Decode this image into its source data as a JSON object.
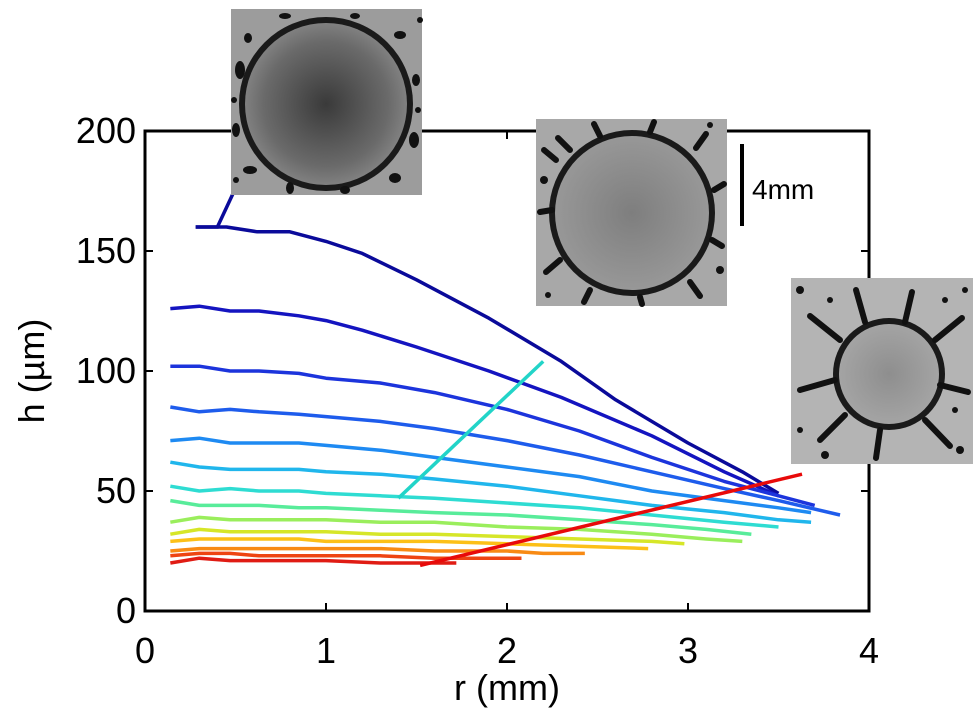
{
  "chart_data": {
    "type": "line",
    "xlabel": "r (mm)",
    "ylabel": "h (µm)",
    "xlim": [
      0,
      4
    ],
    "ylim": [
      0,
      200
    ],
    "xticks": [
      0,
      1,
      2,
      3,
      4
    ],
    "yticks": [
      0,
      50,
      100,
      150,
      200
    ],
    "grid": false,
    "series": [
      {
        "color": "#0a0a9a",
        "points": [
          [
            0.28,
            160
          ],
          [
            0.45,
            160
          ],
          [
            0.62,
            158
          ],
          [
            0.8,
            158
          ],
          [
            1.0,
            154
          ],
          [
            1.2,
            149
          ],
          [
            1.5,
            138
          ],
          [
            1.9,
            122
          ],
          [
            2.3,
            104
          ],
          [
            2.6,
            88
          ],
          [
            3.0,
            70
          ],
          [
            3.3,
            58
          ],
          [
            3.5,
            49
          ]
        ]
      },
      {
        "color": "#1414c0",
        "points": [
          [
            0.14,
            126
          ],
          [
            0.3,
            127
          ],
          [
            0.47,
            125
          ],
          [
            0.63,
            125
          ],
          [
            0.85,
            123
          ],
          [
            1.0,
            121
          ],
          [
            1.2,
            117
          ],
          [
            1.5,
            110
          ],
          [
            1.9,
            100
          ],
          [
            2.3,
            89
          ],
          [
            2.8,
            73
          ],
          [
            3.2,
            58
          ],
          [
            3.5,
            48
          ]
        ]
      },
      {
        "color": "#1c34dc",
        "points": [
          [
            0.14,
            102
          ],
          [
            0.3,
            102
          ],
          [
            0.47,
            100
          ],
          [
            0.63,
            100
          ],
          [
            0.85,
            99
          ],
          [
            1.0,
            97
          ],
          [
            1.3,
            95
          ],
          [
            1.6,
            91
          ],
          [
            2.0,
            84
          ],
          [
            2.4,
            75
          ],
          [
            2.8,
            64
          ],
          [
            3.2,
            54
          ],
          [
            3.5,
            48
          ],
          [
            3.7,
            44
          ]
        ]
      },
      {
        "color": "#1e5cec",
        "points": [
          [
            0.14,
            85
          ],
          [
            0.3,
            83
          ],
          [
            0.47,
            84
          ],
          [
            0.63,
            83
          ],
          [
            0.85,
            82
          ],
          [
            1.0,
            81
          ],
          [
            1.3,
            79
          ],
          [
            1.6,
            76
          ],
          [
            2.0,
            71
          ],
          [
            2.4,
            65
          ],
          [
            2.8,
            58
          ],
          [
            3.2,
            51
          ],
          [
            3.5,
            46
          ],
          [
            3.84,
            40
          ]
        ]
      },
      {
        "color": "#1e8af2",
        "points": [
          [
            0.14,
            71
          ],
          [
            0.3,
            72
          ],
          [
            0.47,
            70
          ],
          [
            0.63,
            70
          ],
          [
            0.85,
            70
          ],
          [
            1.0,
            69
          ],
          [
            1.3,
            67
          ],
          [
            1.6,
            64
          ],
          [
            2.0,
            60
          ],
          [
            2.4,
            56
          ],
          [
            2.8,
            50
          ],
          [
            3.2,
            46
          ],
          [
            3.5,
            43
          ],
          [
            3.68,
            41
          ]
        ]
      },
      {
        "color": "#20b6ec",
        "points": [
          [
            0.14,
            62
          ],
          [
            0.3,
            60
          ],
          [
            0.47,
            59
          ],
          [
            0.63,
            59
          ],
          [
            0.85,
            59
          ],
          [
            1.0,
            58
          ],
          [
            1.3,
            57
          ],
          [
            1.6,
            55
          ],
          [
            2.0,
            52
          ],
          [
            2.4,
            48
          ],
          [
            2.8,
            44
          ],
          [
            3.2,
            41
          ],
          [
            3.5,
            38
          ],
          [
            3.68,
            37
          ]
        ]
      },
      {
        "color": "#2edcd2",
        "points": [
          [
            0.14,
            52
          ],
          [
            0.3,
            50
          ],
          [
            0.47,
            51
          ],
          [
            0.63,
            50
          ],
          [
            0.85,
            50
          ],
          [
            1.0,
            49
          ],
          [
            1.3,
            48
          ],
          [
            1.6,
            47
          ],
          [
            2.0,
            45
          ],
          [
            2.4,
            43
          ],
          [
            2.8,
            40
          ],
          [
            3.2,
            37
          ],
          [
            3.5,
            35
          ]
        ]
      },
      {
        "color": "#58ec9a",
        "points": [
          [
            0.14,
            46
          ],
          [
            0.3,
            44
          ],
          [
            0.47,
            44
          ],
          [
            0.63,
            44
          ],
          [
            0.85,
            43
          ],
          [
            1.0,
            43
          ],
          [
            1.3,
            42
          ],
          [
            1.6,
            41
          ],
          [
            2.0,
            40
          ],
          [
            2.4,
            38
          ],
          [
            2.8,
            36
          ],
          [
            3.1,
            34
          ],
          [
            3.35,
            32
          ]
        ]
      },
      {
        "color": "#9aee5c",
        "points": [
          [
            0.14,
            37
          ],
          [
            0.3,
            39
          ],
          [
            0.47,
            38
          ],
          [
            0.63,
            38
          ],
          [
            0.85,
            38
          ],
          [
            1.0,
            38
          ],
          [
            1.3,
            37
          ],
          [
            1.6,
            37
          ],
          [
            2.0,
            35
          ],
          [
            2.4,
            34
          ],
          [
            2.8,
            32
          ],
          [
            3.1,
            30
          ],
          [
            3.3,
            29
          ]
        ]
      },
      {
        "color": "#d6e628",
        "points": [
          [
            0.14,
            32
          ],
          [
            0.3,
            34
          ],
          [
            0.47,
            33
          ],
          [
            0.63,
            33
          ],
          [
            0.85,
            33
          ],
          [
            1.0,
            33
          ],
          [
            1.3,
            32
          ],
          [
            1.6,
            32
          ],
          [
            2.0,
            31
          ],
          [
            2.4,
            30
          ],
          [
            2.8,
            29
          ],
          [
            2.98,
            28
          ]
        ]
      },
      {
        "color": "#fcc018",
        "points": [
          [
            0.14,
            29
          ],
          [
            0.3,
            30
          ],
          [
            0.47,
            30
          ],
          [
            0.63,
            30
          ],
          [
            0.85,
            30
          ],
          [
            1.0,
            29
          ],
          [
            1.3,
            29
          ],
          [
            1.6,
            29
          ],
          [
            2.0,
            28
          ],
          [
            2.4,
            27
          ],
          [
            2.78,
            26
          ]
        ]
      },
      {
        "color": "#f88a14",
        "points": [
          [
            0.14,
            25
          ],
          [
            0.3,
            26
          ],
          [
            0.47,
            26
          ],
          [
            0.63,
            26
          ],
          [
            0.85,
            26
          ],
          [
            1.0,
            26
          ],
          [
            1.3,
            26
          ],
          [
            1.6,
            25
          ],
          [
            2.0,
            25
          ],
          [
            2.2,
            24
          ],
          [
            2.43,
            24
          ]
        ]
      },
      {
        "color": "#ee4412",
        "points": [
          [
            0.14,
            23
          ],
          [
            0.3,
            24
          ],
          [
            0.47,
            24
          ],
          [
            0.63,
            23
          ],
          [
            0.85,
            23
          ],
          [
            1.0,
            23
          ],
          [
            1.3,
            23
          ],
          [
            1.6,
            22
          ],
          [
            2.08,
            22
          ]
        ]
      },
      {
        "color": "#e01c14",
        "points": [
          [
            0.14,
            20
          ],
          [
            0.3,
            22
          ],
          [
            0.47,
            21
          ],
          [
            0.63,
            21
          ],
          [
            0.85,
            21
          ],
          [
            1.0,
            21
          ],
          [
            1.3,
            20
          ],
          [
            1.72,
            20
          ]
        ]
      }
    ],
    "annotations": [
      {
        "color": "#0a0a9a",
        "from": [
          0.28,
          160
        ],
        "via": [
          0.4,
          160
        ],
        "to": [
          0.53,
          181
        ]
      },
      {
        "color": "#22d4c8",
        "from": [
          1.4,
          47
        ],
        "to": [
          2.2,
          104
        ]
      },
      {
        "color": "#e80a0a",
        "from": [
          1.52,
          19
        ],
        "to": [
          3.63,
          57
        ]
      }
    ],
    "scale_bar_label": "4mm"
  }
}
